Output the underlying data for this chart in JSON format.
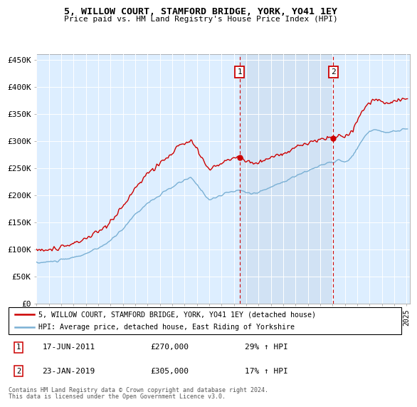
{
  "title1": "5, WILLOW COURT, STAMFORD BRIDGE, YORK, YO41 1EY",
  "title2": "Price paid vs. HM Land Registry's House Price Index (HPI)",
  "ylim": [
    0,
    460000
  ],
  "yticks": [
    0,
    50000,
    100000,
    150000,
    200000,
    250000,
    300000,
    350000,
    400000,
    450000
  ],
  "ytick_labels": [
    "£0",
    "£50K",
    "£100K",
    "£150K",
    "£200K",
    "£250K",
    "£300K",
    "£350K",
    "£400K",
    "£450K"
  ],
  "x_start_year": 1995,
  "x_end_year": 2025,
  "sale1_x": 2011.46,
  "sale1_price": 270000,
  "sale2_x": 2019.06,
  "sale2_price": 305000,
  "legend_line1": "5, WILLOW COURT, STAMFORD BRIDGE, YORK, YO41 1EY (detached house)",
  "legend_line2": "HPI: Average price, detached house, East Riding of Yorkshire",
  "footer1": "Contains HM Land Registry data © Crown copyright and database right 2024.",
  "footer2": "This data is licensed under the Open Government Licence v3.0.",
  "red_color": "#cc0000",
  "blue_color": "#7ab0d4",
  "shade_color": "#ddeeff",
  "bg_color": "#ddeeff",
  "grid_color": "#bbccdd",
  "ann_date1": "17-JUN-2011",
  "ann_price1": "£270,000",
  "ann_pct1": "29% ↑ HPI",
  "ann_date2": "23-JAN-2019",
  "ann_price2": "£305,000",
  "ann_pct2": "17% ↑ HPI"
}
